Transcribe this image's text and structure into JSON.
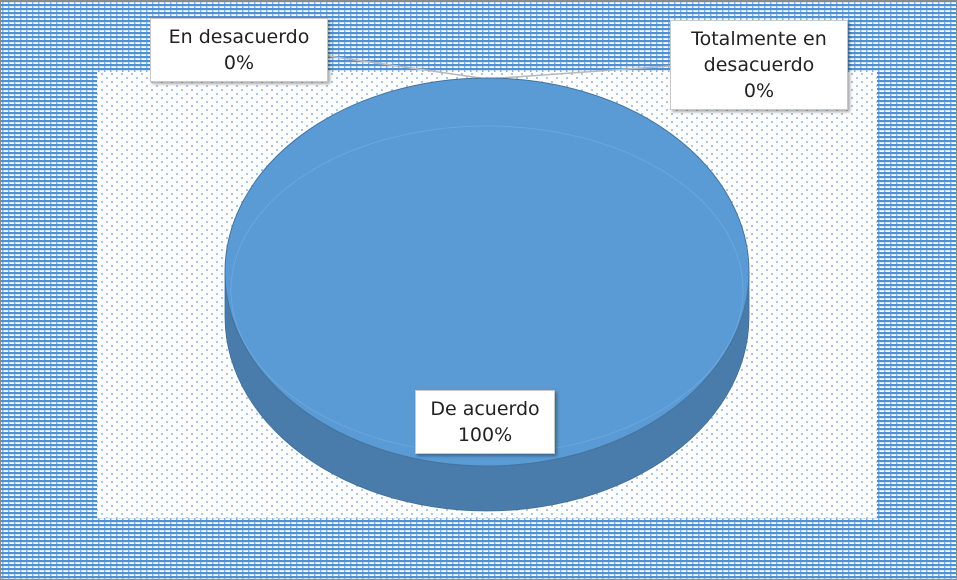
{
  "chart_data": {
    "type": "pie",
    "categories": [
      "En desacuerdo",
      "Totalmente en desacuerdo",
      "De acuerdo"
    ],
    "values": [
      0,
      0,
      100
    ],
    "value_labels": [
      "0%",
      "0%",
      "100%"
    ],
    "color": "#5b9bd5"
  }
}
